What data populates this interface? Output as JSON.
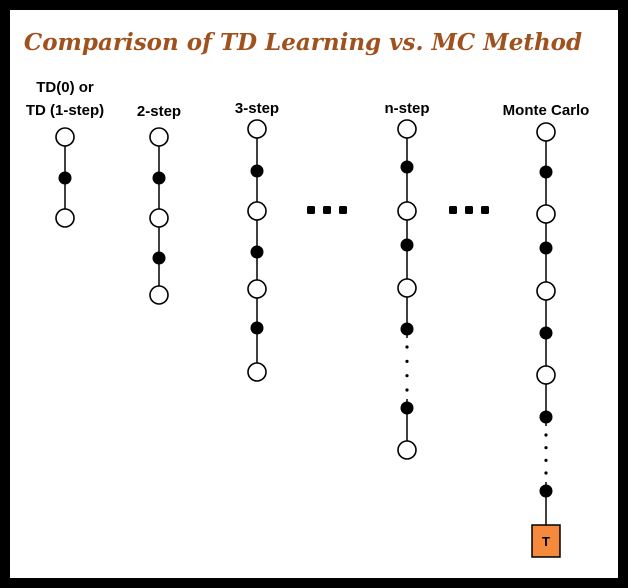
{
  "title": "Comparison of TD Learning vs. MC Method",
  "colors": {
    "title": "#a0521e",
    "terminal_fill": "#f58a3c",
    "node_stroke": "#000000",
    "action_fill": "#000000"
  },
  "columns": [
    {
      "id": "td0",
      "label_lines": [
        "TD(0) or",
        "TD (1-step)"
      ],
      "nodes": [
        "state",
        "action",
        "state"
      ]
    },
    {
      "id": "2step",
      "label_lines": [
        "2-step"
      ],
      "nodes": [
        "state",
        "action",
        "state",
        "action",
        "state"
      ]
    },
    {
      "id": "3step",
      "label_lines": [
        "3-step"
      ],
      "nodes": [
        "state",
        "action",
        "state",
        "action",
        "state",
        "action",
        "state"
      ]
    },
    {
      "id": "nstep",
      "label_lines": [
        "n-step"
      ],
      "nodes": [
        "state",
        "action",
        "state",
        "action",
        "state",
        "action",
        "ellipsis",
        "action",
        "state"
      ]
    },
    {
      "id": "mc",
      "label_lines": [
        "Monte Carlo"
      ],
      "nodes": [
        "state",
        "action",
        "state",
        "action",
        "state",
        "action",
        "state",
        "action",
        "ellipsis",
        "action",
        "terminal"
      ]
    }
  ],
  "terminal_label": "T",
  "separator_icon": "horizontal-ellipsis-icon"
}
